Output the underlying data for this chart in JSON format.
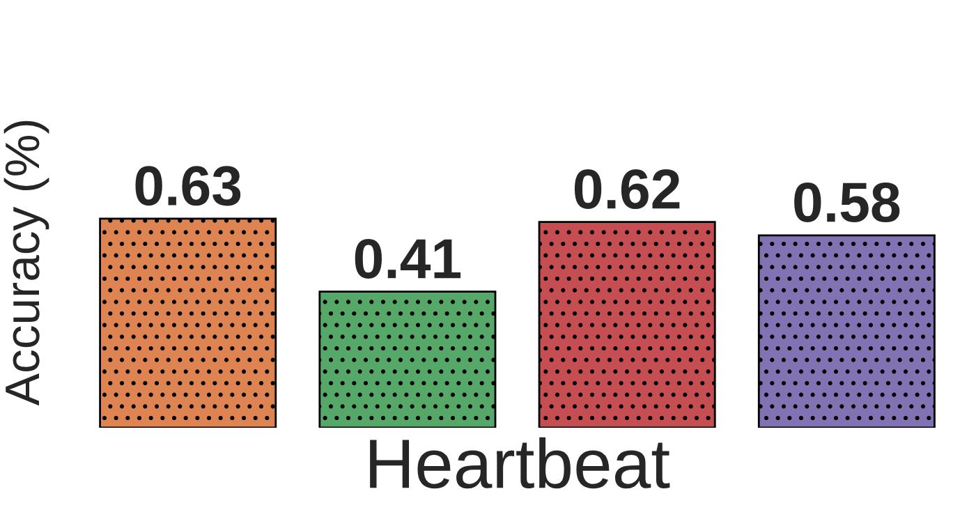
{
  "chart_data": {
    "type": "bar",
    "xlabel": "Heartbeat",
    "ylabel": "Accuracy (%)",
    "categories": [
      null,
      null,
      null,
      null
    ],
    "values": [
      0.63,
      0.41,
      0.62,
      0.58
    ],
    "colors": [
      "#dd8452",
      "#55a868",
      "#c44e52",
      "#8172b3"
    ],
    "data_labels": true,
    "tick_labels": false,
    "grid": false,
    "legend": false
  }
}
